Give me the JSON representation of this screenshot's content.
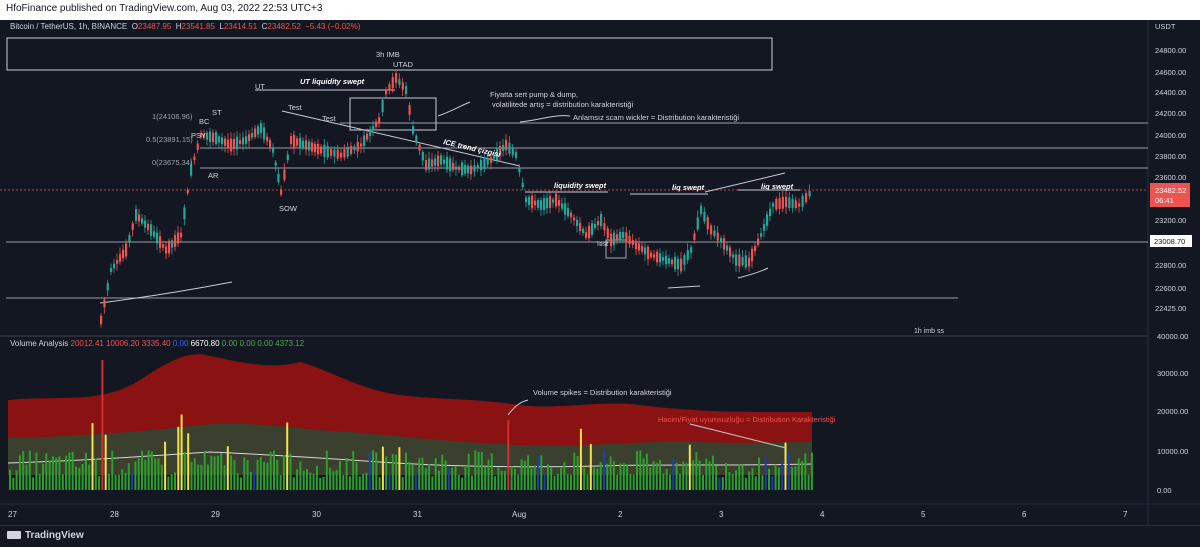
{
  "publisher_line": "HfoFinance published on TradingView.com, Aug 03, 2022 22:53 UTC+3",
  "symbol": "Bitcoin / TetherUS, 1h, BINANCE",
  "ohlc": {
    "o_label": "O",
    "o": "23487.95",
    "h_label": "H",
    "h": "23541.85",
    "l_label": "L",
    "l": "23414.51",
    "c_label": "C",
    "c": "23482.52",
    "change": "−5.43 (−0.02%)"
  },
  "currency": "USDT",
  "price_axis": [
    "24800.00",
    "24600.00",
    "24400.00",
    "24200.00",
    "24000.00",
    "23800.00",
    "23600.00",
    "23400.00",
    "23200.00",
    "23000.00",
    "22800.00",
    "22600.00",
    "22425.00"
  ],
  "price_badge": {
    "value": "23482.52",
    "timer": "06:41"
  },
  "level_badge": "23008.70",
  "volume": {
    "label": "Volume Analysis",
    "values": [
      "20012.41",
      "10006.20",
      "3335.40",
      "0.00",
      "6670.80",
      "0.00",
      "0.00",
      "0.00",
      "4373.12"
    ],
    "value_colors": [
      "#ef5350",
      "#ef5350",
      "#ef5350",
      "#2962ff",
      "#ffffff",
      "#4caf50",
      "#4caf50",
      "#4caf50",
      "#4caf50"
    ],
    "axis": [
      "40000.00",
      "30000.00",
      "20000.00",
      "10000.00",
      "0.00"
    ]
  },
  "time_axis": [
    "27",
    "28",
    "29",
    "30",
    "31",
    "Aug",
    "2",
    "3",
    "4",
    "5",
    "6",
    "7"
  ],
  "annotations": {
    "imb3h": "3h IMB",
    "utad": "UTAD",
    "ut": "UT",
    "ut_swept": "UT liquidity swept",
    "test1": "Test",
    "test2": "Test",
    "bc": "BC",
    "st": "ST",
    "psy": "PSY",
    "ar": "AR",
    "sow": "SOW",
    "fib1": "1(24106.96)",
    "fib05": "0.5(23891.15)",
    "fib0": "0(23675.34)",
    "pump_dump_1": "Fiyatta sert pump & dump,",
    "pump_dump_2": "volatilitede artış = distribution karakteristiği",
    "scam_wicks": "Anlamsız scam wickler = Distribution karakteristiği",
    "ice": "ICE trend çizgisi",
    "liq_swept_1": "liquidity swept",
    "liq_swept_2": "liq swept",
    "liq_swept_3": "liq swept",
    "test_small": "Test",
    "imb1h": "1h imb ss",
    "vol_spikes": "Volume spikes = Distribution karakteristiği",
    "divergence": "Hacim/Fiyat uyumsuzluğu = Distribution Karakteristiği"
  },
  "brand": "TradingView",
  "colors": {
    "bg": "#131722",
    "up": "#26a69a",
    "down": "#ef5350",
    "text": "#d1d4dc",
    "level": "#c9ccd6"
  }
}
